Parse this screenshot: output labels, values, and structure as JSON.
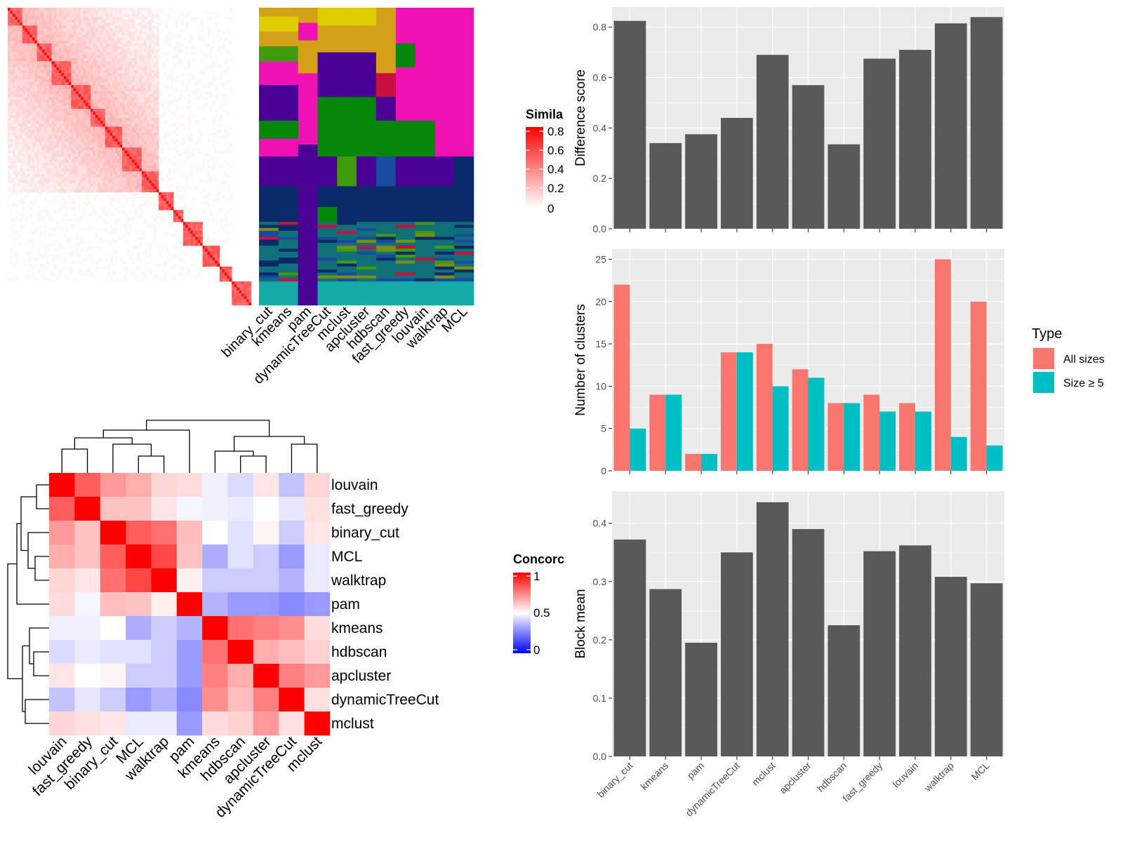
{
  "panels": {
    "similarity_heatmap": {
      "legend_title": "Simila",
      "legend_ticks": [
        "0.8",
        "0.6",
        "0.4",
        "0.2",
        "0"
      ],
      "column_labels": [
        "binary_cut",
        "kmeans",
        "pam",
        "dynamicTreeCut",
        "mclust",
        "apcluster",
        "hdbscan",
        "fast_greedy",
        "louvain",
        "walktrap",
        "MCL"
      ]
    },
    "concordance_heatmap": {
      "legend_title": "Concorc",
      "legend_ticks": [
        "1",
        "0.5",
        "0"
      ],
      "row_labels": [
        "louvain",
        "fast_greedy",
        "binary_cut",
        "MCL",
        "walktrap",
        "pam",
        "kmeans",
        "hdbscan",
        "apcluster",
        "dynamicTreeCut",
        "mclust"
      ],
      "col_labels": [
        "louvain",
        "fast_greedy",
        "binary_cut",
        "MCL",
        "walktrap",
        "pam",
        "kmeans",
        "hdbscan",
        "apcluster",
        "dynamicTreeCut",
        "mclust"
      ],
      "values": [
        [
          1.0,
          0.82,
          0.7,
          0.66,
          0.58,
          0.57,
          0.47,
          0.43,
          0.55,
          0.38,
          0.58
        ],
        [
          0.82,
          1.0,
          0.62,
          0.62,
          0.55,
          0.48,
          0.47,
          0.46,
          0.5,
          0.45,
          0.56
        ],
        [
          0.7,
          0.62,
          1.0,
          0.82,
          0.78,
          0.63,
          0.5,
          0.44,
          0.52,
          0.4,
          0.55
        ],
        [
          0.66,
          0.62,
          0.82,
          1.0,
          0.86,
          0.62,
          0.34,
          0.44,
          0.4,
          0.3,
          0.46
        ],
        [
          0.58,
          0.55,
          0.78,
          0.86,
          1.0,
          0.53,
          0.4,
          0.4,
          0.4,
          0.35,
          0.46
        ],
        [
          0.57,
          0.48,
          0.63,
          0.62,
          0.53,
          1.0,
          0.35,
          0.3,
          0.3,
          0.27,
          0.3
        ],
        [
          0.47,
          0.47,
          0.5,
          0.34,
          0.4,
          0.35,
          1.0,
          0.78,
          0.75,
          0.72,
          0.57
        ],
        [
          0.43,
          0.46,
          0.44,
          0.44,
          0.4,
          0.3,
          0.78,
          1.0,
          0.66,
          0.63,
          0.59
        ],
        [
          0.55,
          0.5,
          0.52,
          0.4,
          0.4,
          0.3,
          0.75,
          0.66,
          1.0,
          0.75,
          0.7
        ],
        [
          0.38,
          0.45,
          0.4,
          0.3,
          0.35,
          0.27,
          0.72,
          0.63,
          0.75,
          1.0,
          0.56
        ],
        [
          0.58,
          0.56,
          0.55,
          0.46,
          0.46,
          0.3,
          0.57,
          0.59,
          0.7,
          0.56,
          1.0
        ]
      ]
    }
  },
  "chart_data": [
    {
      "type": "bar",
      "ylabel": "Difference score",
      "categories": [
        "binary_cut",
        "kmeans",
        "pam",
        "dynamicTreeCut",
        "mclust",
        "apcluster",
        "hdbscan",
        "fast_greedy",
        "louvain",
        "walktrap",
        "MCL"
      ],
      "values": [
        0.825,
        0.34,
        0.375,
        0.44,
        0.69,
        0.57,
        0.335,
        0.675,
        0.71,
        0.815,
        0.84
      ],
      "ylim": [
        0,
        0.88
      ],
      "yticks": [
        0.0,
        0.2,
        0.4,
        0.6,
        0.8
      ],
      "ytick_labels": [
        "0.0",
        "0.2",
        "0.4",
        "0.6",
        "0.8"
      ],
      "grid": true,
      "colors": [
        "#595959"
      ]
    },
    {
      "type": "bar",
      "ylabel": "Number of clusters",
      "categories": [
        "binary_cut",
        "kmeans",
        "pam",
        "dynamicTreeCut",
        "mclust",
        "apcluster",
        "hdbscan",
        "fast_greedy",
        "louvain",
        "walktrap",
        "MCL"
      ],
      "series": [
        {
          "name": "All sizes",
          "values": [
            22,
            9,
            2,
            14,
            15,
            12,
            8,
            9,
            8,
            25,
            20
          ]
        },
        {
          "name": "Size ≥ 5",
          "values": [
            5,
            9,
            2,
            14,
            10,
            11,
            8,
            7,
            7,
            4,
            3
          ]
        }
      ],
      "ylim": [
        0,
        26.2
      ],
      "yticks": [
        0,
        5,
        10,
        15,
        20,
        25
      ],
      "ytick_labels": [
        "0",
        "5",
        "10",
        "15",
        "20",
        "25"
      ],
      "grid": true,
      "legend_title": "Type",
      "legend_position": "right",
      "colors": [
        "#F8766D",
        "#00BFC4"
      ]
    },
    {
      "type": "bar",
      "ylabel": "Block mean",
      "categories": [
        "binary_cut",
        "kmeans",
        "pam",
        "dynamicTreeCut",
        "mclust",
        "apcluster",
        "hdbscan",
        "fast_greedy",
        "louvain",
        "walktrap",
        "MCL"
      ],
      "values": [
        0.372,
        0.287,
        0.195,
        0.35,
        0.436,
        0.39,
        0.225,
        0.352,
        0.362,
        0.308,
        0.297
      ],
      "ylim": [
        0,
        0.455
      ],
      "yticks": [
        0.0,
        0.1,
        0.2,
        0.3,
        0.4
      ],
      "ytick_labels": [
        "0.0",
        "0.1",
        "0.2",
        "0.3",
        "0.4"
      ],
      "grid": true,
      "colors": [
        "#595959"
      ]
    }
  ]
}
